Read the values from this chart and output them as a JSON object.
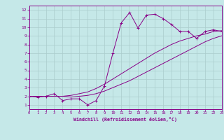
{
  "xlabel": "Windchill (Refroidissement éolien,°C)",
  "bg_color": "#c5e8e8",
  "line_color": "#880088",
  "grid_color": "#aacccc",
  "x_data": [
    0,
    1,
    2,
    3,
    4,
    5,
    6,
    7,
    8,
    9,
    10,
    11,
    12,
    13,
    14,
    15,
    16,
    17,
    18,
    19,
    20,
    21,
    22,
    23
  ],
  "y_jagged": [
    2,
    1.9,
    2,
    2.3,
    1.5,
    1.7,
    1.7,
    1.0,
    1.5,
    3.2,
    7.0,
    10.5,
    11.7,
    9.9,
    11.4,
    11.5,
    11.0,
    10.3,
    9.5,
    9.5,
    8.7,
    9.5,
    9.7,
    9.5
  ],
  "y_line1": [
    2,
    2,
    2,
    2,
    2,
    2.1,
    2.3,
    2.5,
    2.9,
    3.4,
    4.0,
    4.6,
    5.2,
    5.8,
    6.4,
    7.0,
    7.5,
    8.0,
    8.4,
    8.7,
    9.0,
    9.2,
    9.5,
    9.6
  ],
  "y_line2": [
    2,
    2,
    2,
    2,
    2,
    1.9,
    2.0,
    2.1,
    2.3,
    2.6,
    3.0,
    3.4,
    3.8,
    4.3,
    4.8,
    5.3,
    5.8,
    6.3,
    6.8,
    7.3,
    7.8,
    8.3,
    8.7,
    9.0
  ],
  "xlim": [
    0,
    23
  ],
  "ylim": [
    0.5,
    12.5
  ],
  "yticks": [
    1,
    2,
    3,
    4,
    5,
    6,
    7,
    8,
    9,
    10,
    11,
    12
  ],
  "xticks": [
    0,
    1,
    2,
    3,
    4,
    5,
    6,
    7,
    8,
    9,
    10,
    11,
    12,
    13,
    14,
    15,
    16,
    17,
    18,
    19,
    20,
    21,
    22,
    23
  ]
}
